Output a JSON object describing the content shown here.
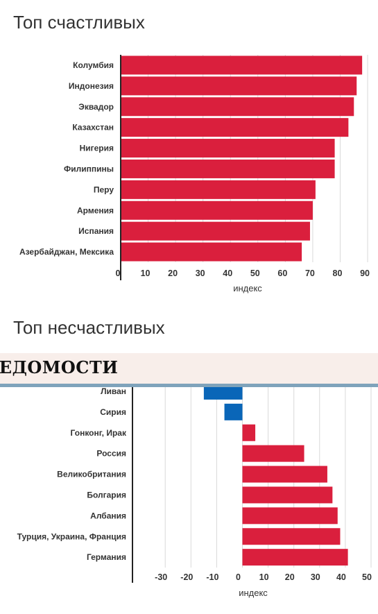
{
  "chart_data": [
    {
      "type": "bar",
      "orientation": "horizontal",
      "title": "Топ счастливых",
      "xlabel": "индекс",
      "categories": [
        "Колумбия",
        "Индонезия",
        "Эквадор",
        "Казахстан",
        "Нигерия",
        "Филиппины",
        "Перу",
        "Армения",
        "Испания",
        "Азербайджан, Мексика"
      ],
      "values": [
        88,
        86,
        85,
        83,
        78,
        78,
        71,
        70,
        69,
        66
      ],
      "xlim": [
        0,
        91
      ],
      "xticks": [
        0,
        10,
        20,
        30,
        40,
        50,
        60,
        70,
        80,
        90
      ],
      "grid": true,
      "colors": {
        "positive": "#DA1F3D",
        "negative": "#0A66B8"
      }
    },
    {
      "type": "bar",
      "orientation": "horizontal",
      "title": "Топ несчастливых",
      "xlabel": "индекс",
      "categories": [
        "Ливан",
        "Сирия",
        "Гонконг, Ирак",
        "Россия",
        "Великобритания",
        "Болгария",
        "Албания",
        "Турция, Украина, Франция",
        "Германия"
      ],
      "values": [
        -15,
        -7,
        5,
        24,
        33,
        35,
        37,
        38,
        41
      ],
      "xlim": [
        -43,
        50
      ],
      "xticks": [
        -30,
        -20,
        -10,
        0,
        10,
        20,
        30,
        40,
        50
      ],
      "grid": true,
      "colors": {
        "positive": "#DA1F3D",
        "negative": "#0A66B8"
      }
    }
  ],
  "overlay_banner": {
    "text": "ВЕДОМОСТИ"
  }
}
